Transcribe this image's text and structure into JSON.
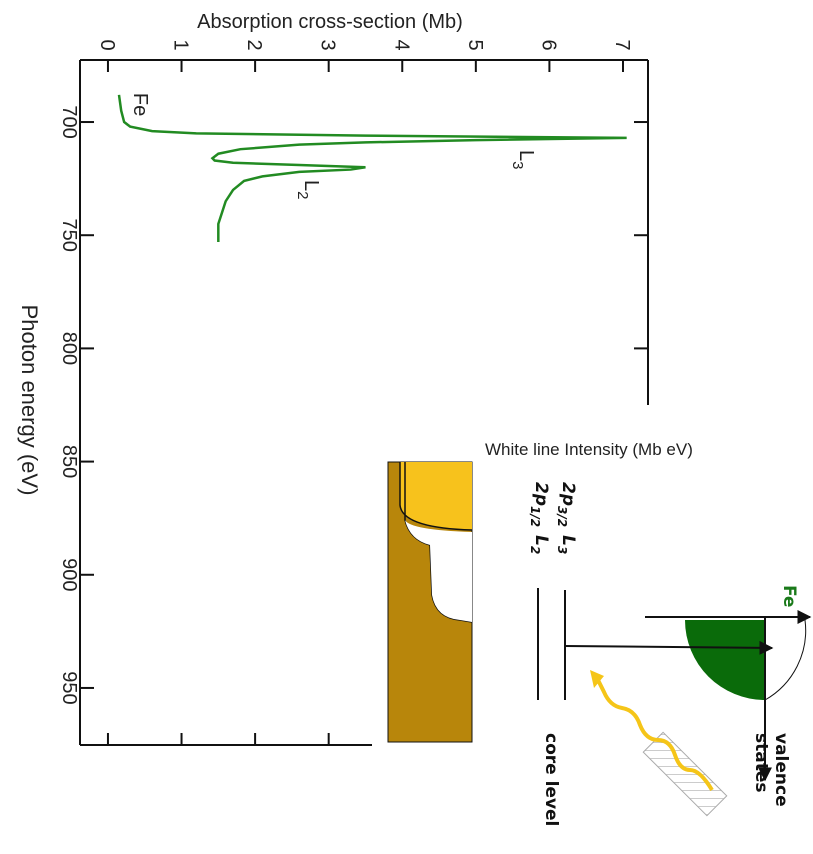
{
  "chart_data": {
    "type": "line",
    "ylabel": "Absorption cross-section (Mb)",
    "xlabel": "Photon energy (eV)",
    "x": [
      688,
      695,
      700,
      702,
      704,
      705,
      706,
      707,
      708,
      709,
      710,
      712,
      714,
      716,
      717,
      718,
      719,
      720,
      721,
      722,
      724,
      726,
      730,
      735,
      740,
      745,
      750,
      753
    ],
    "series": [
      {
        "name": "Fe",
        "color": "#228b22",
        "values": [
          0.15,
          0.18,
          0.22,
          0.3,
          0.6,
          1.2,
          3.5,
          7.05,
          5.0,
          3.5,
          2.6,
          1.8,
          1.5,
          1.42,
          1.45,
          1.7,
          2.6,
          3.5,
          3.3,
          2.6,
          2.1,
          1.85,
          1.7,
          1.6,
          1.55,
          1.5,
          1.5,
          1.5
        ]
      }
    ],
    "annotations": [
      {
        "main": "L",
        "sub": "3"
      },
      {
        "main": "L",
        "sub": "2"
      }
    ],
    "xlim": [
      672.6,
      975.2
    ],
    "xticks": [
      700,
      750,
      800,
      850,
      900,
      950
    ],
    "ylim": [
      -0.38,
      7.34
    ],
    "yticks": [
      0,
      1,
      2,
      3,
      4,
      5,
      6,
      7
    ]
  },
  "diagram": {
    "inset_label": "White line Intensity (Mb eV)",
    "element": "Fe",
    "levels": [
      {
        "orbital": "2p",
        "orbital_sub": "3/2",
        "edge": "L",
        "edge_sub": "3"
      },
      {
        "orbital": "2p",
        "orbital_sub": "1/2",
        "edge": "L",
        "edge_sub": "2"
      }
    ],
    "valence": [
      "valence",
      "states"
    ],
    "core": "core level"
  }
}
